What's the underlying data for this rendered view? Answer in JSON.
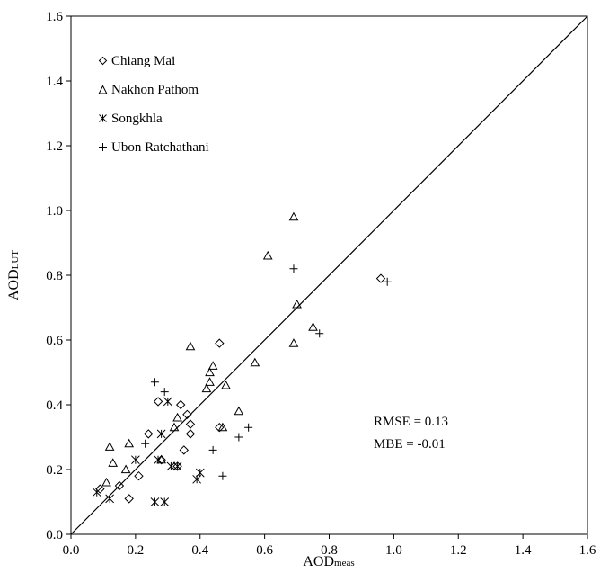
{
  "chart_data": {
    "type": "scatter",
    "title": "",
    "xlabel": "AOD",
    "xlabel_sub": "meas",
    "ylabel": "AOD",
    "ylabel_sub": "LUT",
    "xlim": [
      0.0,
      1.6
    ],
    "ylim": [
      0.0,
      1.6
    ],
    "xticks": [
      "0.0",
      "0.2",
      "0.4",
      "0.6",
      "0.8",
      "1.0",
      "1.2",
      "1.4",
      "1.6"
    ],
    "yticks": [
      "0.0",
      "0.2",
      "0.4",
      "0.6",
      "0.8",
      "1.0",
      "1.2",
      "1.4",
      "1.6"
    ],
    "grid": false,
    "legend_position": "top-left",
    "reference_line": "1:1",
    "annotations": [
      "RMSE = 0.13",
      "MBE = -0.01"
    ],
    "series": [
      {
        "name": "Chiang Mai",
        "marker": "diamond",
        "points": [
          [
            0.09,
            0.14
          ],
          [
            0.15,
            0.15
          ],
          [
            0.18,
            0.11
          ],
          [
            0.21,
            0.18
          ],
          [
            0.24,
            0.31
          ],
          [
            0.27,
            0.41
          ],
          [
            0.28,
            0.23
          ],
          [
            0.33,
            0.21
          ],
          [
            0.34,
            0.4
          ],
          [
            0.35,
            0.26
          ],
          [
            0.36,
            0.37
          ],
          [
            0.37,
            0.34
          ],
          [
            0.37,
            0.31
          ],
          [
            0.46,
            0.59
          ],
          [
            0.46,
            0.33
          ],
          [
            0.96,
            0.79
          ]
        ]
      },
      {
        "name": "Nakhon Pathom",
        "marker": "triangle",
        "points": [
          [
            0.11,
            0.16
          ],
          [
            0.12,
            0.27
          ],
          [
            0.13,
            0.22
          ],
          [
            0.17,
            0.2
          ],
          [
            0.18,
            0.28
          ],
          [
            0.28,
            0.23
          ],
          [
            0.32,
            0.33
          ],
          [
            0.33,
            0.36
          ],
          [
            0.37,
            0.58
          ],
          [
            0.42,
            0.45
          ],
          [
            0.43,
            0.47
          ],
          [
            0.43,
            0.5
          ],
          [
            0.44,
            0.52
          ],
          [
            0.47,
            0.33
          ],
          [
            0.48,
            0.46
          ],
          [
            0.52,
            0.38
          ],
          [
            0.57,
            0.53
          ],
          [
            0.61,
            0.86
          ],
          [
            0.69,
            0.98
          ],
          [
            0.69,
            0.59
          ],
          [
            0.7,
            0.71
          ],
          [
            0.75,
            0.64
          ]
        ]
      },
      {
        "name": "Songkhla",
        "marker": "asterisk",
        "points": [
          [
            0.08,
            0.13
          ],
          [
            0.12,
            0.11
          ],
          [
            0.2,
            0.23
          ],
          [
            0.26,
            0.1
          ],
          [
            0.27,
            0.23
          ],
          [
            0.28,
            0.31
          ],
          [
            0.29,
            0.1
          ],
          [
            0.3,
            0.41
          ],
          [
            0.31,
            0.21
          ],
          [
            0.33,
            0.21
          ],
          [
            0.39,
            0.17
          ],
          [
            0.4,
            0.19
          ]
        ]
      },
      {
        "name": "Ubon Ratchathani",
        "marker": "plus",
        "points": [
          [
            0.23,
            0.28
          ],
          [
            0.26,
            0.47
          ],
          [
            0.29,
            0.44
          ],
          [
            0.44,
            0.26
          ],
          [
            0.47,
            0.18
          ],
          [
            0.52,
            0.3
          ],
          [
            0.55,
            0.33
          ],
          [
            0.69,
            0.82
          ],
          [
            0.77,
            0.62
          ],
          [
            0.98,
            0.78
          ]
        ]
      }
    ]
  }
}
